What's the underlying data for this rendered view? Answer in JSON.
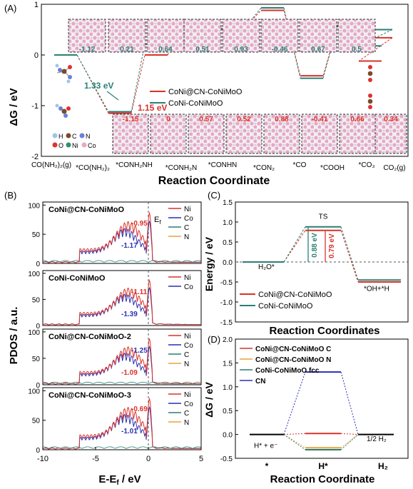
{
  "chart_data": [
    {
      "panel": "(A)",
      "type": "line",
      "xlabel": "Reaction Coordinate",
      "ylabel": "ΔG / eV",
      "ylim": [
        -2,
        1
      ],
      "yticks": [
        "-2",
        "-1",
        "0",
        "1"
      ],
      "categories": [
        "CO(NH₂)₂(g)",
        "*CO(NH₂)₂",
        "*CONH₂NH",
        "*CONH₂N",
        "*CONHN",
        "*CON₂",
        "*CO",
        "*COOH",
        "*CO₃",
        "CO₂(g)"
      ],
      "series": [
        {
          "name": "CoNi@CN-CoNiMoO",
          "color": "#d93228",
          "values": [
            0,
            -1.15,
            0.0,
            0.57,
            0.52,
            0.88,
            -0.41,
            0.66,
            0.34,
            -0.12
          ]
        },
        {
          "name": "CoNi-CoNiMoO",
          "color": "#2a7f74",
          "values": [
            0,
            -1.12,
            0.21,
            0.64,
            0.51,
            0.93,
            -0.46,
            0.67,
            0.5,
            0.18
          ]
        }
      ],
      "step_labels_top": [
        "-1.12",
        "0.21",
        "0.64",
        "0.51",
        "0.93",
        "-0.46",
        "0.67",
        "0.5"
      ],
      "step_labels_bottom": [
        "-1.15",
        "0",
        "0.57",
        "0.52",
        "0.88",
        "-0.41",
        "0.66",
        "0.34"
      ],
      "annotations": [
        "1.33 eV",
        "1.15 eV"
      ],
      "legend_atoms": [
        "H",
        "C",
        "N",
        "O",
        "Ni",
        "Co"
      ]
    },
    {
      "panel": "(B)",
      "type": "line",
      "xlabel": "E-Ef / eV",
      "ylabel": "PDOS / a.u.",
      "xlim": [
        -10,
        5
      ],
      "xticks": [
        "-10",
        "-5",
        "0",
        "5"
      ],
      "ylim": [
        0,
        100
      ],
      "yticks": [
        "0",
        "50",
        "100"
      ],
      "fermi_label": "Ef",
      "subpanels": [
        {
          "title": "CoNi@CN-CoNiMoO",
          "legend": [
            "Ni",
            "Co",
            "C",
            "N"
          ],
          "centers": [
            "-0.95",
            "-1.17"
          ]
        },
        {
          "title": "CoNi-CoNiMoO",
          "legend": [
            "Ni",
            "Co"
          ],
          "centers": [
            "-1.11",
            "-1.39"
          ]
        },
        {
          "title": "CoNi@CN-CoNiMoO-2",
          "legend": [
            "Ni",
            "Co",
            "C",
            "N"
          ],
          "centers": [
            "-1.25",
            "-1.09"
          ]
        },
        {
          "title": "CoNi@CN-CoNiMoO-3",
          "legend": [
            "Ni",
            "Co",
            "C",
            "N"
          ],
          "centers": [
            "-0.69",
            "-1.01"
          ]
        }
      ]
    },
    {
      "panel": "(C)",
      "type": "line",
      "xlabel": "Reaction Coordinates",
      "ylabel": "Energy / eV",
      "ylim": [
        -1.5,
        1.5
      ],
      "yticks": [
        "-1.5",
        "-1.0",
        "-0.5",
        "0.0",
        "0.5",
        "1.0",
        "1.5"
      ],
      "state_labels": [
        "H₂O*",
        "TS",
        "*OH+*H"
      ],
      "series": [
        {
          "name": "CoNi@CN-CoNiMoO",
          "color": "#d93228",
          "values": [
            0,
            0.79,
            -0.5
          ]
        },
        {
          "name": "CoNi-CoNiMoO",
          "color": "#2a7f74",
          "values": [
            0,
            0.88,
            -0.45
          ]
        }
      ],
      "barrier_labels": [
        "0.88 eV",
        "0.79 eV"
      ]
    },
    {
      "panel": "(D)",
      "type": "line",
      "xlabel": "Reaction Coordinate",
      "ylabel": "ΔG / eV",
      "ylim": [
        -0.5,
        2.0
      ],
      "yticks": [
        "-0.5",
        "0.0",
        "0.5",
        "1.0",
        "1.5",
        "2.0"
      ],
      "categories": [
        "*",
        "H*",
        "H₂"
      ],
      "state_labels": [
        "H* + e⁻",
        "1/2 H₂"
      ],
      "series": [
        {
          "name": "CoNi@CN-CoNiMoO C",
          "color": "#d93228",
          "values": [
            0,
            0.02,
            0
          ]
        },
        {
          "name": "CoNi@CN-CoNiMoO N",
          "color": "#e8a33a",
          "values": [
            0,
            -0.28,
            0
          ]
        },
        {
          "name": "CoNi-CoNiMoO fcc",
          "color": "#2a7f74",
          "values": [
            0,
            -0.32,
            0
          ]
        },
        {
          "name": "CN",
          "color": "#2b2fb3",
          "values": [
            0,
            1.31,
            0
          ]
        }
      ]
    }
  ]
}
